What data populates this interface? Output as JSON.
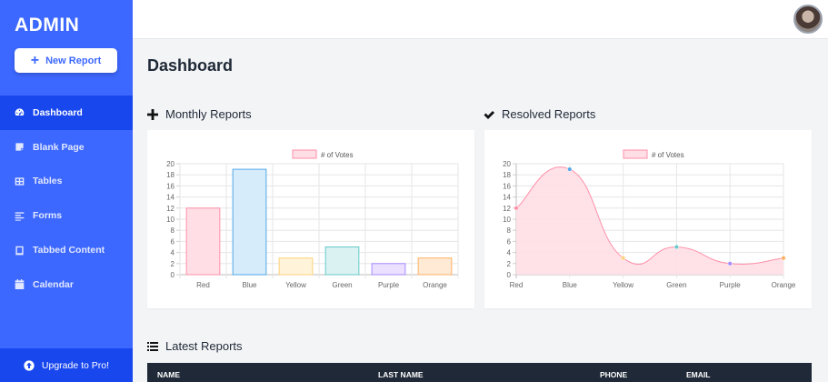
{
  "sidebar": {
    "brand": "ADMIN",
    "new_report_label": "New Report",
    "items": [
      {
        "label": "Dashboard",
        "icon": "gauge-icon",
        "active": true
      },
      {
        "label": "Blank Page",
        "icon": "sticky-note-icon"
      },
      {
        "label": "Tables",
        "icon": "table-icon"
      },
      {
        "label": "Forms",
        "icon": "align-left-icon"
      },
      {
        "label": "Tabbed Content",
        "icon": "tablet-icon"
      },
      {
        "label": "Calendar",
        "icon": "calendar-icon"
      }
    ],
    "upgrade_label": "Upgrade to Pro!"
  },
  "main": {
    "title": "Dashboard",
    "monthly_title": "Monthly Reports",
    "resolved_title": "Resolved Reports",
    "latest_title": "Latest Reports",
    "table_headers": [
      "NAME",
      "LAST NAME",
      "PHONE",
      "EMAIL"
    ]
  },
  "colors": {
    "sidebar": "#3d68ff",
    "sidebar_active": "#1947ee",
    "table_header": "#1f2937"
  },
  "chart_data": [
    {
      "type": "bar",
      "categories": [
        "Red",
        "Blue",
        "Yellow",
        "Green",
        "Purple",
        "Orange"
      ],
      "series": [
        {
          "name": "# of Votes",
          "values": [
            12,
            19,
            3,
            5,
            2,
            3
          ]
        }
      ],
      "ylim": [
        0,
        20
      ],
      "yticks": [
        0,
        2,
        4,
        6,
        8,
        10,
        12,
        14,
        16,
        18,
        20
      ],
      "legend": "top",
      "grid": true,
      "fills": [
        "#ffdfe5",
        "#d7ecfb",
        "#fff4d9",
        "#dbf2f2",
        "#ebe0ff",
        "#ffead6"
      ],
      "strokes": [
        "#ff8fa8",
        "#52a8e8",
        "#ffd27a",
        "#67c9c9",
        "#a78bff",
        "#ffb060"
      ]
    },
    {
      "type": "line",
      "categories": [
        "Red",
        "Blue",
        "Yellow",
        "Green",
        "Purple",
        "Orange"
      ],
      "series": [
        {
          "name": "# of Votes",
          "values": [
            12,
            19,
            3,
            5,
            2,
            3
          ]
        }
      ],
      "ylim": [
        0,
        20
      ],
      "yticks": [
        0,
        2,
        4,
        6,
        8,
        10,
        12,
        14,
        16,
        18,
        20
      ],
      "legend": "top",
      "grid": true,
      "fill": "#ffdfe5",
      "stroke": "#ff8fa8",
      "point_colors": [
        "#ff8fa8",
        "#52a8e8",
        "#ffd27a",
        "#67c9c9",
        "#a78bff",
        "#ffb060"
      ]
    }
  ]
}
